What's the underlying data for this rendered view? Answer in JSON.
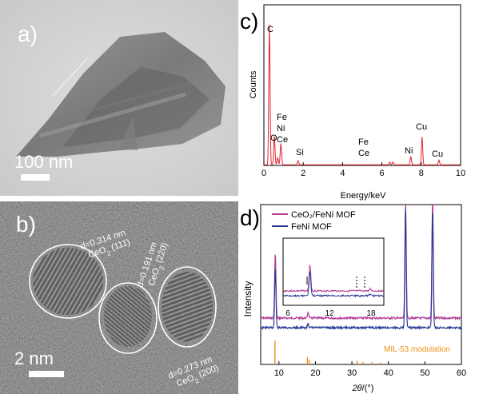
{
  "panels": {
    "a": {
      "label": "a)",
      "scale_bar": "100 nm"
    },
    "b": {
      "label": "b)",
      "scale_bar": "2 nm",
      "annotations": [
        {
          "d": "d=0.314 nm",
          "phase": "CeO",
          "sub": "2",
          "plane": " (111)"
        },
        {
          "d": "d=0.191 nm",
          "phase": "CeO",
          "sub": "2",
          "plane": " (220)"
        },
        {
          "d": "d=0.273 nm",
          "phase": "CeO",
          "sub": "2",
          "plane": " (200)"
        }
      ]
    },
    "c": {
      "label": "c)",
      "ylabel": "Counts",
      "xlabel": "Energy/keV",
      "peak_labels": [
        "C",
        "Fe",
        "Ni",
        "O",
        "Ce",
        "Si",
        "Fe",
        "Ce",
        "Ni",
        "Cu",
        "Cu"
      ]
    },
    "d": {
      "label": "d)",
      "ylabel": "Intensity",
      "xlabel_italic": "2θ",
      "xlabel_rest": "/(°)",
      "reference_label": "MIL-53 modulation",
      "inset_ticks": [
        "6",
        "12",
        "18"
      ]
    }
  },
  "colors": {
    "eds": "#e8202a",
    "ceo2_fenimof": "#b43a96",
    "fenimof": "#2b3d97",
    "mil53": "#f28e1c"
  },
  "chart_data": [
    {
      "type": "bar",
      "panel": "c",
      "ylabel": "Counts",
      "xlabel": "Energy/keV",
      "xlim": [
        0,
        10
      ],
      "xticks": [
        "0",
        "2",
        "4",
        "6",
        "8",
        "10"
      ],
      "peaks": [
        {
          "label": "C",
          "x": 0.28,
          "y": 1.0
        },
        {
          "label": "O",
          "x": 0.53,
          "y": 0.21
        },
        {
          "label": "Fe",
          "x": 0.7,
          "y": 0.05
        },
        {
          "label": "Ni",
          "x": 0.85,
          "y": 0.09
        },
        {
          "label": "Ce",
          "x": 0.88,
          "y": 0.08
        },
        {
          "label": "Si",
          "x": 1.74,
          "y": 0.03
        },
        {
          "label": "Fe",
          "x": 6.4,
          "y": 0.02
        },
        {
          "label": "Ce",
          "x": 6.56,
          "y": 0.02
        },
        {
          "label": "Ni",
          "x": 7.47,
          "y": 0.06
        },
        {
          "label": "Cu",
          "x": 8.04,
          "y": 0.2
        },
        {
          "label": "Cu",
          "x": 8.9,
          "y": 0.035
        }
      ]
    },
    {
      "type": "line",
      "panel": "d",
      "ylabel": "Intensity",
      "xlabel": "2θ/(°)",
      "xlim": [
        5,
        60
      ],
      "xticks": [
        "10",
        "20",
        "30",
        "40",
        "50",
        "60"
      ],
      "legend": "top-left",
      "series": [
        {
          "name": "CeO₂/FeNi MOF",
          "peaks": [
            [
              9.0,
              0.55
            ],
            [
              18.0,
              0.05
            ],
            [
              44.7,
              1.0
            ],
            [
              52.1,
              1.0
            ]
          ]
        },
        {
          "name": "FeNi MOF",
          "peaks": [
            [
              9.0,
              0.5
            ],
            [
              18.0,
              0.04
            ],
            [
              44.7,
              1.0
            ],
            [
              52.1,
              1.0
            ]
          ]
        },
        {
          "name": "MIL-53 modulation",
          "sticks": [
            [
              8.9,
              1.0
            ],
            [
              17.8,
              0.3
            ],
            [
              18.3,
              0.2
            ],
            [
              31.4,
              0.15
            ],
            [
              33.0,
              0.1
            ],
            [
              35.5,
              0.1
            ],
            [
              37.9,
              0.08
            ]
          ]
        }
      ]
    }
  ]
}
